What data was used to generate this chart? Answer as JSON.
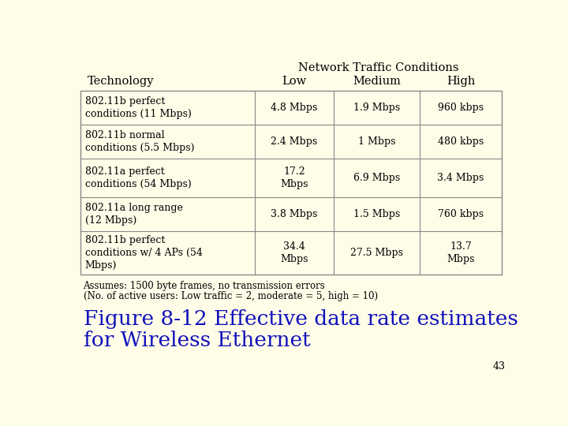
{
  "bg_color": "#FFFDE8",
  "table_edge_color": "#888888",
  "title_line1": "Network Traffic Conditions",
  "col_headers": [
    "Low",
    "Medium",
    "High"
  ],
  "row_header": "Technology",
  "rows": [
    {
      "tech": "802.11b perfect\nconditions (11 Mbps)",
      "low": "4.8 Mbps",
      "medium": "1.9 Mbps",
      "high": "960 kbps"
    },
    {
      "tech": "802.11b normal\nconditions (5.5 Mbps)",
      "low": "2.4 Mbps",
      "medium": "1 Mbps",
      "high": "480 kbps"
    },
    {
      "tech": "802.11a perfect\nconditions (54 Mbps)",
      "low": "17.2\nMbps",
      "medium": "6.9 Mbps",
      "high": "3.4 Mbps"
    },
    {
      "tech": "802.11a long range\n(12 Mbps)",
      "low": "3.8 Mbps",
      "medium": "1.5 Mbps",
      "high": "760 kbps"
    },
    {
      "tech": "802.11b perfect\nconditions w/ 4 APs (54\nMbps)",
      "low": "34.4\nMbps",
      "medium": "27.5 Mbps",
      "high": "13.7\nMbps"
    }
  ],
  "footnote1": "Assumes: 1500 byte frames, no transmission errors",
  "footnote2": "(No. of active users: Low traffic = 2, moderate = 5, high = 10)",
  "figure_caption_line1": "Figure 8-12 Effective data rate estimates",
  "figure_caption_line2": "for Wireless Ethernet",
  "page_number": "43",
  "text_color": "#000000",
  "blue_color": "#1111BB",
  "table_font_size": 9.0,
  "header_font_size": 10.5,
  "caption_font_size": 19.0,
  "footnote_font_size": 8.5
}
